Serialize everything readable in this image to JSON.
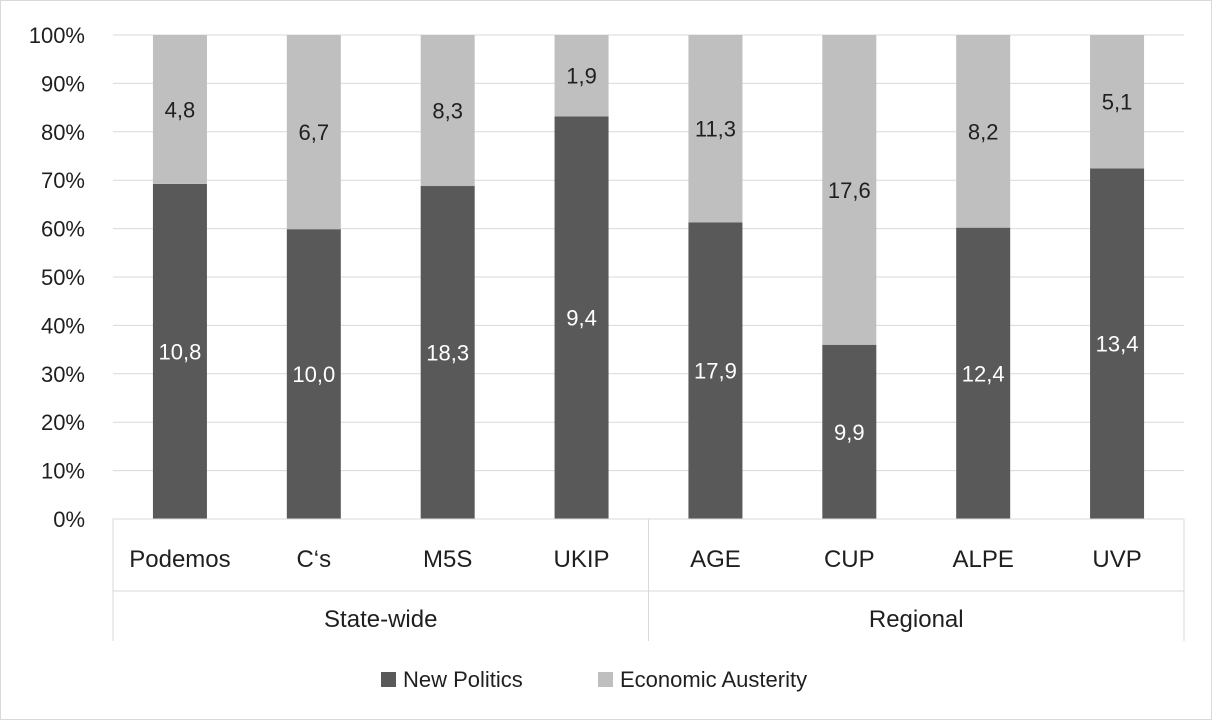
{
  "chart_data": {
    "type": "bar",
    "stacked": true,
    "percent_stacked": true,
    "categories": [
      "Podemos",
      "C‘s",
      "M5S",
      "UKIP",
      "AGE",
      "CUP",
      "ALPE",
      "UVP"
    ],
    "groups": [
      {
        "label": "State-wide",
        "categories": [
          "Podemos",
          "C‘s",
          "M5S",
          "UKIP"
        ]
      },
      {
        "label": "Regional",
        "categories": [
          "AGE",
          "CUP",
          "ALPE",
          "UVP"
        ]
      }
    ],
    "series": [
      {
        "name": "New Politics",
        "color": "#595959",
        "values": [
          10.8,
          10.0,
          18.3,
          9.4,
          17.9,
          9.9,
          12.4,
          13.4
        ],
        "labels": [
          "10,8",
          "10,0",
          "18,3",
          "9,4",
          "17,9",
          "9,9",
          "12,4",
          "13,4"
        ]
      },
      {
        "name": "Economic Austerity",
        "color": "#bfbfbf",
        "values": [
          4.8,
          6.7,
          8.3,
          1.9,
          11.3,
          17.6,
          8.2,
          5.1
        ],
        "labels": [
          "4,8",
          "6,7",
          "8,3",
          "1,9",
          "11,3",
          "17,6",
          "8,2",
          "5,1"
        ]
      }
    ],
    "y_ticks": [
      "0%",
      "10%",
      "20%",
      "30%",
      "40%",
      "50%",
      "60%",
      "70%",
      "80%",
      "90%",
      "100%"
    ],
    "ylim": [
      0,
      100
    ],
    "grid": true,
    "legend_position": "bottom"
  }
}
